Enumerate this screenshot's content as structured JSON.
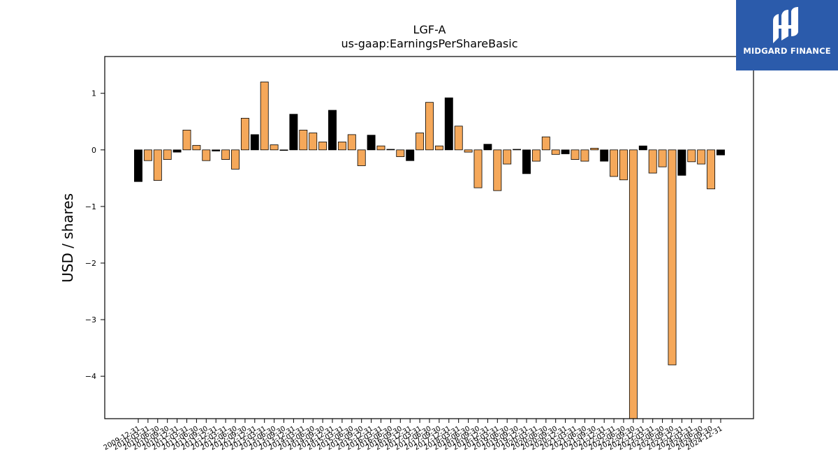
{
  "logo": {
    "text": "MIDGARD FINANCE"
  },
  "chart_data": {
    "type": "bar",
    "title": "LGF-A",
    "subtitle": "us-gaap:EarningsPerShareBasic",
    "ylabel": "USD / shares",
    "ylim": [
      -4.75,
      1.65
    ],
    "yticks": [
      1,
      0,
      -1,
      -2,
      -3,
      -4
    ],
    "ytick_labels": [
      "1",
      "0",
      "−1",
      "−2",
      "−3",
      "−4"
    ],
    "colors": {
      "primary": "#000000",
      "secondary": "#f5a85a"
    },
    "categories": [
      "2009-12-31",
      "2010-03-31",
      "2010-06-30",
      "2010-09-30",
      "2010-12-31",
      "2011-03-31",
      "2011-06-30",
      "2011-09-30",
      "2011-12-31",
      "2012-03-31",
      "2012-06-30",
      "2012-09-30",
      "2012-12-31",
      "2013-03-31",
      "2013-06-30",
      "2013-09-30",
      "2013-12-31",
      "2014-03-31",
      "2014-06-30",
      "2014-09-30",
      "2014-12-31",
      "2015-03-31",
      "2015-06-30",
      "2015-09-30",
      "2015-12-31",
      "2016-03-31",
      "2016-06-30",
      "2016-09-30",
      "2016-12-31",
      "2017-03-31",
      "2017-06-30",
      "2017-09-30",
      "2017-12-31",
      "2018-03-31",
      "2018-06-30",
      "2018-09-30",
      "2018-12-31",
      "2019-03-31",
      "2019-06-30",
      "2019-09-30",
      "2019-12-31",
      "2020-03-31",
      "2020-06-30",
      "2020-09-30",
      "2020-12-31",
      "2021-03-31",
      "2021-06-30",
      "2021-09-30",
      "2021-12-31",
      "2022-03-31",
      "2022-06-30",
      "2022-09-30",
      "2022-12-31",
      "2023-03-31",
      "2023-06-30",
      "2023-09-30",
      "2023-12-31",
      "2024-03-31",
      "2024-06-30",
      "2024-09-30",
      "2024-12-31"
    ],
    "values": [
      -0.56,
      -0.19,
      -0.54,
      -0.17,
      -0.04,
      0.35,
      0.08,
      -0.19,
      -0.02,
      -0.17,
      -0.34,
      0.56,
      0.27,
      1.2,
      0.09,
      -0.01,
      0.63,
      0.35,
      0.3,
      0.14,
      0.7,
      0.14,
      0.27,
      -0.28,
      0.26,
      0.07,
      0.01,
      -0.12,
      -0.19,
      0.3,
      0.84,
      0.07,
      0.92,
      0.42,
      -0.04,
      -0.67,
      0.1,
      -0.72,
      -0.25,
      0.01,
      -0.42,
      -0.2,
      0.23,
      -0.08,
      -0.07,
      -0.17,
      -0.2,
      0.03,
      -0.2,
      -0.47,
      -0.53,
      -4.8,
      0.07,
      -0.41,
      -0.3,
      -3.8,
      -0.45,
      -0.21,
      -0.25,
      -0.69,
      -0.09
    ],
    "fill": [
      "primary",
      "secondary",
      "secondary",
      "secondary",
      "primary",
      "secondary",
      "secondary",
      "secondary",
      "primary",
      "secondary",
      "secondary",
      "secondary",
      "primary",
      "secondary",
      "secondary",
      "secondary",
      "primary",
      "secondary",
      "secondary",
      "secondary",
      "primary",
      "secondary",
      "secondary",
      "secondary",
      "primary",
      "secondary",
      "primary",
      "secondary",
      "primary",
      "secondary",
      "secondary",
      "secondary",
      "primary",
      "secondary",
      "secondary",
      "secondary",
      "primary",
      "secondary",
      "secondary",
      "secondary",
      "primary",
      "secondary",
      "secondary",
      "secondary",
      "primary",
      "secondary",
      "secondary",
      "secondary",
      "primary",
      "secondary",
      "secondary",
      "secondary",
      "primary",
      "secondary",
      "secondary",
      "secondary",
      "primary",
      "secondary",
      "secondary",
      "secondary",
      "primary"
    ]
  }
}
